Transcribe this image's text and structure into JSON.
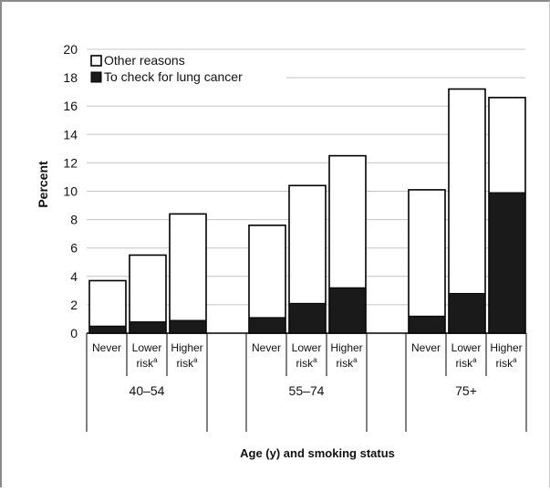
{
  "chart_data": {
    "type": "bar",
    "stacked": true,
    "xlabel": "Age (y) and smoking status",
    "ylabel": "Percent",
    "ylim": [
      0,
      20
    ],
    "yticks": [
      0,
      2,
      4,
      6,
      8,
      10,
      12,
      14,
      16,
      18,
      20
    ],
    "grid": true,
    "legend_position": "top-left",
    "groups": [
      {
        "label": "40–54",
        "bars": [
          {
            "label": "Never",
            "sup": "",
            "to_check": 0.5,
            "total": 3.7
          },
          {
            "label": "Lower risk",
            "sup": "a",
            "to_check": 0.8,
            "total": 5.5
          },
          {
            "label": "Higher risk",
            "sup": "a",
            "to_check": 0.9,
            "total": 8.4
          }
        ]
      },
      {
        "label": "55–74",
        "bars": [
          {
            "label": "Never",
            "sup": "",
            "to_check": 1.1,
            "total": 7.6
          },
          {
            "label": "Lower risk",
            "sup": "a",
            "to_check": 2.1,
            "total": 10.4
          },
          {
            "label": "Higher risk",
            "sup": "a",
            "to_check": 3.2,
            "total": 12.5
          }
        ]
      },
      {
        "label": "75+",
        "bars": [
          {
            "label": "Never",
            "sup": "",
            "to_check": 1.2,
            "total": 10.1
          },
          {
            "label": "Lower risk",
            "sup": "a",
            "to_check": 2.8,
            "total": 17.2
          },
          {
            "label": "Higher risk",
            "sup": "a",
            "to_check": 9.9,
            "total": 16.6
          }
        ]
      }
    ],
    "series": [
      {
        "name": "Other reasons",
        "color": "#ffffff"
      },
      {
        "name": "To check for lung cancer",
        "color": "#1a1a1a"
      }
    ]
  }
}
